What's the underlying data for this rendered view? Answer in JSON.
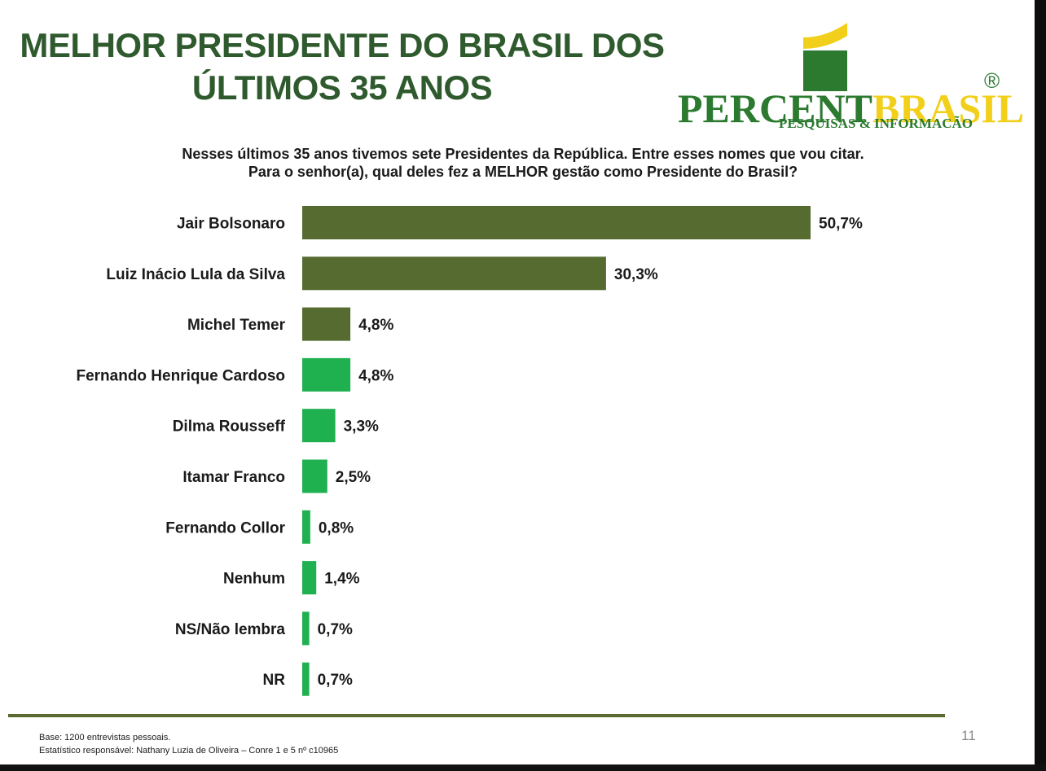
{
  "header": {
    "title_line1": "MELHOR PRESIDENTE DO BRASIL DOS",
    "title_line2": "ÚLTIMOS 35 ANOS"
  },
  "logo": {
    "name_part1": "PERCENT",
    "name_part2": "BRASIL",
    "registered": "®",
    "tagline": "PESQUISAS & INFORMACÃO",
    "colors": {
      "green": "#2b7a2f",
      "yellow": "#f2cf1a"
    }
  },
  "question": {
    "line1": "Nesses últimos 35 anos tivemos sete Presidentes da República. Entre esses nomes que vou citar.",
    "line2": "Para o senhor(a), qual deles fez a MELHOR gestão como Presidente do Brasil?"
  },
  "chart_data": {
    "type": "bar",
    "orientation": "horizontal",
    "categories": [
      "Jair Bolsonaro",
      "Luiz Inácio Lula da Silva",
      "Michel Temer",
      "Fernando Henrique Cardoso",
      "Dilma Rousseff",
      "Itamar Franco",
      "Fernando Collor",
      "Nenhum",
      "NS/Não lembra",
      "NR"
    ],
    "values": [
      50.7,
      30.3,
      4.8,
      4.8,
      3.3,
      2.5,
      0.8,
      1.4,
      0.7,
      0.7
    ],
    "value_labels": [
      "50,7%",
      "30,3%",
      "4,8%",
      "4,8%",
      "3,3%",
      "2,5%",
      "0,8%",
      "1,4%",
      "0,7%",
      "0,7%"
    ],
    "bar_colors": [
      "#556b2f",
      "#556b2f",
      "#556b2f",
      "#1fb04f",
      "#1fb04f",
      "#1fb04f",
      "#1fb04f",
      "#1fb04f",
      "#1fb04f",
      "#1fb04f"
    ],
    "xlim": [
      0,
      50.7
    ],
    "grid": false,
    "legend": "none"
  },
  "footer": {
    "base": "Base: 1200 entrevistas pessoais.",
    "statistician": "Estatístico responsável: Nathany Luzia de Oliveira – Conre 1 e 5 nº c10965",
    "page_number": "11"
  }
}
